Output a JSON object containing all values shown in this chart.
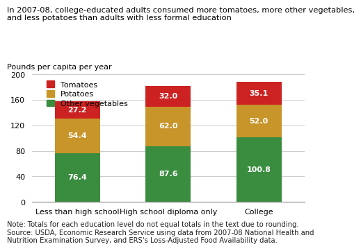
{
  "title_line1": "In 2007-08, college-educated adults consumed more tomatoes, more other vegetables,",
  "title_line2": "and less potatoes than adults with less formal education",
  "ylabel": "Pounds per capita per year",
  "categories": [
    "Less than high school",
    "High school diploma only",
    "College"
  ],
  "other_veg": [
    76.4,
    87.6,
    100.8
  ],
  "potatoes": [
    54.4,
    62.0,
    52.0
  ],
  "tomatoes": [
    27.2,
    32.0,
    35.1
  ],
  "color_other_veg": "#3a8c3f",
  "color_potatoes": "#c8952a",
  "color_tomatoes": "#cc2222",
  "ylim": [
    0,
    200
  ],
  "yticks": [
    0,
    40,
    80,
    120,
    160,
    200
  ],
  "legend_labels": [
    "Tomatoes",
    "Potatoes",
    "Other vegetables"
  ],
  "note_line1": "Note: Totals for each education level do not equal totals in the text due to rounding.",
  "note_line2": "Source: USDA, Economic Research Service using data from 2007-08 National Health and",
  "note_line3": "Nutrition Examination Survey, and ERS's Loss-Adjusted Food Availability data.",
  "bar_width": 0.5,
  "label_fontsize": 8.0,
  "title_fontsize": 8.2,
  "axis_label_fontsize": 8.0,
  "note_fontsize": 7.2,
  "legend_fontsize": 8.0
}
